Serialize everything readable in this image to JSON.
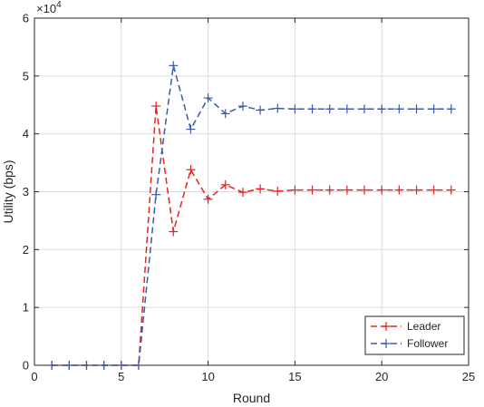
{
  "chart_data": {
    "type": "line",
    "xlabel": "Round",
    "ylabel": "Utility (bps)",
    "y_multiplier_label": "×10",
    "y_multiplier_exponent": "4",
    "xlim": [
      0,
      25
    ],
    "ylim": [
      0,
      6
    ],
    "x_ticks": [
      0,
      5,
      10,
      15,
      20,
      25
    ],
    "y_ticks": [
      0,
      1,
      2,
      3,
      4,
      5,
      6
    ],
    "grid": true,
    "legend_position": "bottom-right",
    "x": [
      1,
      2,
      3,
      4,
      5,
      6,
      7,
      8,
      9,
      10,
      11,
      12,
      13,
      14,
      15,
      16,
      17,
      18,
      19,
      20,
      21,
      22,
      23,
      24
    ],
    "series": [
      {
        "name": "Leader",
        "color": "#e8221d",
        "values": [
          0,
          0,
          0,
          0,
          0,
          0,
          4.48,
          2.31,
          3.38,
          2.87,
          3.12,
          2.99,
          3.05,
          3.01,
          3.03,
          3.03,
          3.03,
          3.03,
          3.03,
          3.03,
          3.03,
          3.03,
          3.03,
          3.03
        ]
      },
      {
        "name": "Follower",
        "color": "#3a5aad",
        "values": [
          0,
          0,
          0,
          0,
          0,
          0,
          2.95,
          5.18,
          4.08,
          4.62,
          4.35,
          4.48,
          4.41,
          4.44,
          4.43,
          4.43,
          4.43,
          4.43,
          4.43,
          4.43,
          4.43,
          4.43,
          4.43,
          4.43
        ]
      }
    ]
  }
}
